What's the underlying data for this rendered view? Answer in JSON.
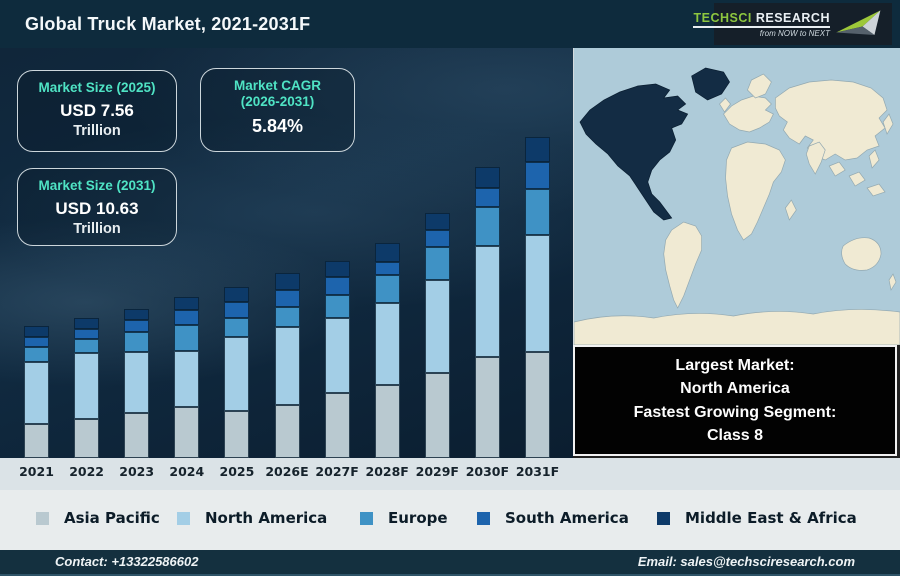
{
  "header": {
    "title": "Global Truck Market, 2021-2031F",
    "logo": {
      "brand_primary": "TechSci",
      "brand_secondary": "Research",
      "tagline": "from NOW to NEXT",
      "brand_green": "#8dc63f"
    }
  },
  "stat_boxes": [
    {
      "label_line1": "Market Size (2025)",
      "label_line2": "",
      "value": "USD 7.56",
      "unit": "Trillion"
    },
    {
      "label_line1": "Market CAGR",
      "label_line2": "(2026-2031)",
      "value": "5.84%",
      "unit": ""
    },
    {
      "label_line1": "Market Size (2031)",
      "label_line2": "",
      "value": "USD 10.63",
      "unit": "Trillion"
    }
  ],
  "info_box": {
    "lines": [
      "Largest Market:",
      "North America",
      "Fastest Growing Segment:",
      "Class 8"
    ]
  },
  "chart_data": {
    "type": "bar",
    "stacked": true,
    "title": "Global Truck Market, 2021-2031F",
    "axis": "none (illustrative stacked bars, values estimated from pixel heights)",
    "legend_position": "bottom",
    "categories": [
      "2021",
      "2022",
      "2023",
      "2024",
      "2025",
      "2026E",
      "2027F",
      "2028F",
      "2029F",
      "2030F",
      "2031F"
    ],
    "series": [
      {
        "name": "Asia Pacific",
        "color": "#b9c9d0",
        "values": [
          34,
          39,
          45,
          51,
          47,
          53,
          65,
          73,
          85,
          101,
          106
        ]
      },
      {
        "name": "North America",
        "color": "#a3cee6",
        "values": [
          62,
          66,
          61,
          56,
          74,
          78,
          75,
          82,
          93,
          111,
          117
        ]
      },
      {
        "name": "Europe",
        "color": "#3f92c5",
        "values": [
          15,
          14,
          20,
          26,
          19,
          20,
          23,
          28,
          33,
          39,
          46
        ]
      },
      {
        "name": "South America",
        "color": "#1d64ad",
        "values": [
          10,
          10,
          12,
          15,
          16,
          17,
          18,
          13,
          17,
          19,
          27
        ]
      },
      {
        "name": "Middle East & Africa",
        "color": "#0d3a69",
        "values": [
          11,
          11,
          11,
          13,
          15,
          17,
          16,
          19,
          17,
          21,
          25
        ]
      }
    ],
    "totals_relative": [
      132,
      140,
      149,
      161,
      171,
      185,
      197,
      215,
      245,
      291,
      321
    ],
    "anchors": {
      "2025": "USD 7.56 Trillion",
      "2031": "USD 10.63 Trillion",
      "cagr_2026_2031": "5.84%"
    }
  },
  "legend": [
    {
      "label": "Asia Pacific",
      "color": "#b9c9d0"
    },
    {
      "label": "North America",
      "color": "#a3cee6"
    },
    {
      "label": "Europe",
      "color": "#3f92c5"
    },
    {
      "label": "South America",
      "color": "#1d64ad"
    },
    {
      "label": "Middle East & Africa",
      "color": "#0d3a69"
    }
  ],
  "map": {
    "highlight_region": "North America",
    "ocean_color": "#aecbd9",
    "land_color": "#f0ead3",
    "highlight_color": "#132c44"
  },
  "footer": {
    "contact": "Contact: +13322586602",
    "email": "Email: sales@techsciresearch.com"
  }
}
